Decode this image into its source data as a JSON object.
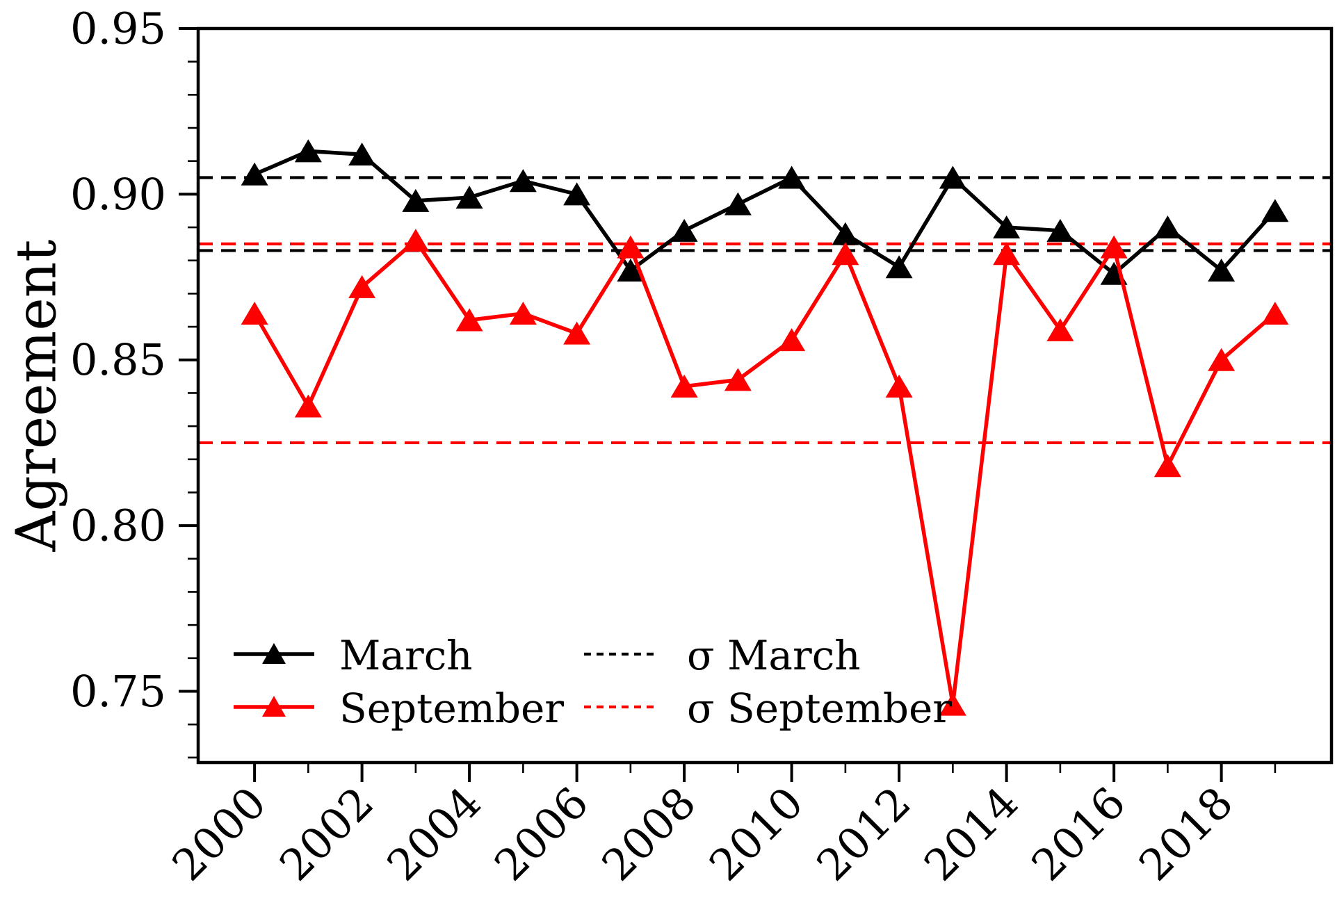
{
  "figure": {
    "background": "#ffffff"
  },
  "chart_data": {
    "type": "line",
    "title": "",
    "xlabel": "",
    "ylabel": "Agreement",
    "x": [
      2000,
      2001,
      2002,
      2003,
      2004,
      2005,
      2006,
      2007,
      2008,
      2009,
      2010,
      2011,
      2012,
      2013,
      2014,
      2015,
      2016,
      2017,
      2018,
      2019
    ],
    "series": [
      {
        "name": "March",
        "color": "#000000",
        "marker": "triangle-up",
        "values": [
          0.906,
          0.913,
          0.912,
          0.898,
          0.899,
          0.904,
          0.9,
          0.877,
          0.889,
          0.897,
          0.905,
          0.888,
          0.878,
          0.905,
          0.89,
          0.889,
          0.876,
          0.89,
          0.877,
          0.895
        ]
      },
      {
        "name": "September",
        "color": "#ff0000",
        "marker": "triangle-up",
        "values": [
          0.864,
          0.836,
          0.872,
          0.886,
          0.862,
          0.864,
          0.858,
          0.884,
          0.842,
          0.844,
          0.856,
          0.882,
          0.842,
          0.746,
          0.882,
          0.859,
          0.884,
          0.818,
          0.85,
          0.864
        ]
      }
    ],
    "hlines": [
      {
        "label": "σ March",
        "color": "#000000",
        "style": "dashed",
        "values": [
          0.905,
          0.883
        ]
      },
      {
        "label": "σ September",
        "color": "#ff0000",
        "style": "dashed",
        "values": [
          0.885,
          0.825
        ]
      }
    ],
    "xlim": [
      1998.95,
      2020.05
    ],
    "ylim": [
      0.7285,
      0.95
    ],
    "yticks_major": [
      0.75,
      0.8,
      0.85,
      0.9,
      0.95
    ],
    "ytick_labels": [
      "0.75",
      "0.80",
      "0.85",
      "0.90",
      "0.95"
    ],
    "ytick_minor_step": 0.01,
    "xticks_major": [
      2000,
      2002,
      2004,
      2006,
      2008,
      2010,
      2012,
      2014,
      2016,
      2018
    ],
    "xtick_labels": [
      "2000",
      "2002",
      "2004",
      "2006",
      "2008",
      "2010",
      "2012",
      "2014",
      "2016",
      "2018"
    ],
    "xticks_minor": [
      2001,
      2003,
      2005,
      2007,
      2009,
      2011,
      2013,
      2015,
      2017,
      2019
    ],
    "xtick_label_rotation": 45,
    "grid": false,
    "legend_position": "lower-left"
  },
  "legend": {
    "march_label": "March",
    "september_label": "September",
    "sigma_march_label": "σ March",
    "sigma_september_label": "σ September"
  }
}
